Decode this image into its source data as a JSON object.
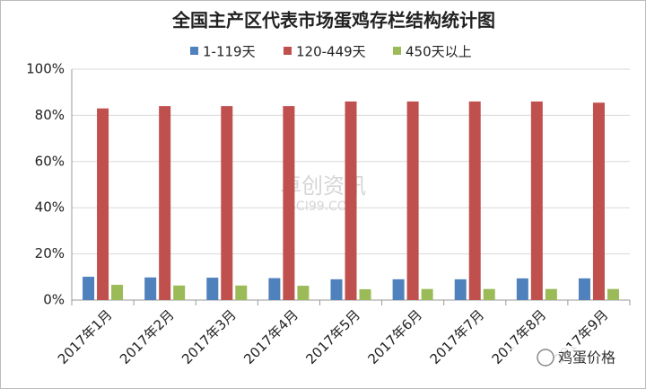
{
  "chart_data": {
    "type": "bar",
    "title": "全国主产区代表市场蛋鸡存栏结构统计图",
    "categories": [
      "2017年1月",
      "2017年2月",
      "2017年3月",
      "2017年4月",
      "2017年5月",
      "2017年6月",
      "2017年7月",
      "2017年8月",
      "2017年9月"
    ],
    "series": [
      {
        "name": "1-119天",
        "color": "#4f81bd",
        "values": [
          10.1,
          9.8,
          9.7,
          9.5,
          9,
          9,
          9,
          9.4,
          9.4
        ]
      },
      {
        "name": "120-449天",
        "color": "#c0504d",
        "values": [
          83,
          84,
          84,
          84,
          86,
          86,
          86,
          86,
          85.5
        ]
      },
      {
        "name": "450天以上",
        "color": "#9bbb59",
        "values": [
          6.6,
          6.3,
          6.3,
          6.2,
          4.7,
          4.8,
          4.8,
          4.8,
          4.8
        ]
      }
    ],
    "ylim": [
      0,
      100
    ],
    "yticks": [
      {
        "value": 0,
        "label": "0%"
      },
      {
        "value": 20,
        "label": "20%"
      },
      {
        "value": 40,
        "label": "40%"
      },
      {
        "value": 60,
        "label": "60%"
      },
      {
        "value": 80,
        "label": "80%"
      },
      {
        "value": 100,
        "label": "100%"
      }
    ],
    "grid": true,
    "legend": "top",
    "watermark": [
      "卓创资讯",
      "SCI99.COM"
    ],
    "badge": "鸡蛋价格"
  }
}
